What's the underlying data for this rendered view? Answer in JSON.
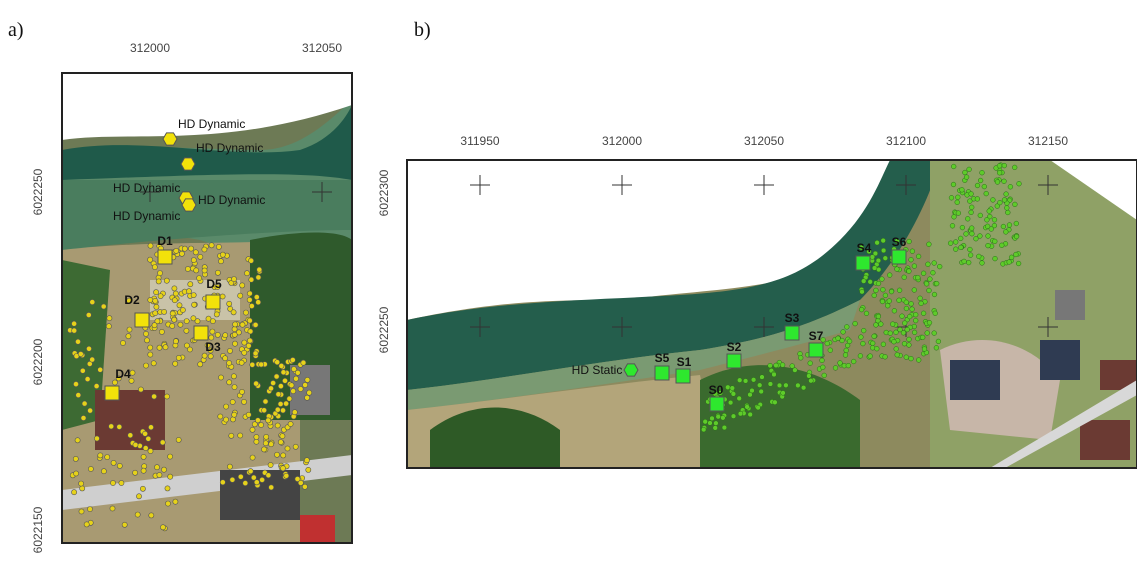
{
  "panels": [
    {
      "label": "a)",
      "x_ticks": [
        "312000",
        "312050"
      ],
      "y_ticks": [
        "6022250",
        "6022200",
        "6022150"
      ],
      "markers": [
        {
          "label": "HD Dynamic"
        },
        {
          "label": "HD Dynamic"
        },
        {
          "label": "HD Dynamic"
        },
        {
          "label": "HD Dynamic"
        },
        {
          "label": "HD Dynamic"
        },
        {
          "label": "D1"
        },
        {
          "label": "D2"
        },
        {
          "label": "D5"
        },
        {
          "label": "D3"
        },
        {
          "label": "D4"
        }
      ]
    },
    {
      "label": "b)",
      "x_ticks": [
        "311950",
        "312000",
        "312050",
        "312100",
        "312150"
      ],
      "y_ticks": [
        "6022300",
        "6022250"
      ],
      "markers": [
        {
          "label": "HD Static"
        },
        {
          "label": "S5"
        },
        {
          "label": "S1"
        },
        {
          "label": "S0"
        },
        {
          "label": "S2"
        },
        {
          "label": "S3"
        },
        {
          "label": "S7"
        },
        {
          "label": "S4"
        },
        {
          "label": "S6"
        }
      ]
    }
  ]
}
